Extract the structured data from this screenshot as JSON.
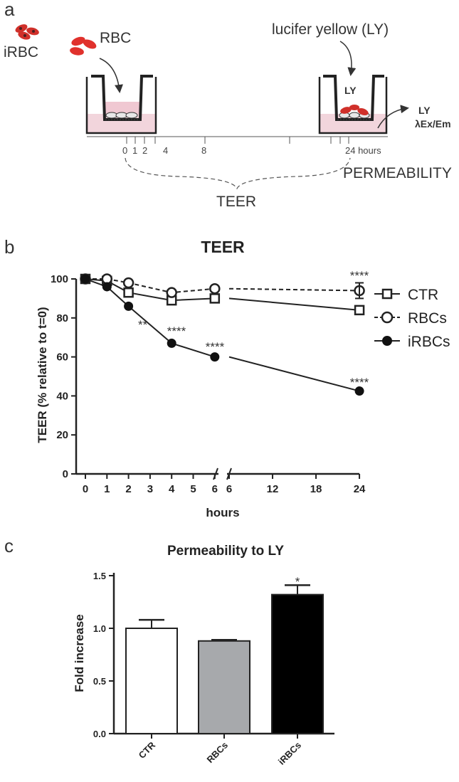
{
  "panels": {
    "a": "a",
    "b": "b",
    "c": "c"
  },
  "schematic": {
    "irbc_label": "iRBC",
    "rbc_label": "RBC",
    "ly_title": "lucifer yellow (LY)",
    "ly_in_well": "LY",
    "ly_out": "LY",
    "ly_ex_em": "λEx/Em",
    "timeline_ticks": [
      "0",
      "1",
      "2",
      "4",
      "8",
      "24 hours"
    ],
    "teer": "TEER",
    "permeability": "PERMEABILITY"
  },
  "chart_data": [
    {
      "type": "line",
      "title": "TEER",
      "xlabel": "hours",
      "ylabel": "TEER (% relative to t=0)",
      "ylim": [
        0,
        100
      ],
      "yticks": [
        "0",
        "20",
        "40",
        "60",
        "80",
        "100"
      ],
      "xticks": [
        "0",
        "1",
        "2",
        "3",
        "4",
        "5",
        "6",
        "6",
        "12",
        "18",
        "24"
      ],
      "x_axis_break": "between 6 and 6 (segment 0-6 h, then 6-24 h)",
      "series": [
        {
          "name": "CTR",
          "marker": "open-square",
          "line": "solid",
          "x": [
            0,
            1,
            2,
            4,
            6,
            24
          ],
          "values": [
            100,
            99,
            93,
            89,
            90,
            84
          ]
        },
        {
          "name": "RBCs",
          "marker": "open-circle",
          "line": "dashed",
          "x": [
            0,
            1,
            2,
            4,
            6,
            24
          ],
          "values": [
            100,
            100,
            98,
            93,
            95,
            94
          ]
        },
        {
          "name": "iRBCs",
          "marker": "filled-circle",
          "line": "solid",
          "x": [
            0,
            1,
            2,
            4,
            6,
            24
          ],
          "values": [
            100,
            96,
            86,
            67,
            60,
            42.5
          ]
        }
      ],
      "annotations": [
        {
          "x": 2,
          "text": "**"
        },
        {
          "x": 4,
          "text": "****"
        },
        {
          "x": 6,
          "text": "****"
        },
        {
          "x": 24,
          "series": "RBCs",
          "text": "****"
        },
        {
          "x": 24,
          "series": "iRBCs",
          "text": "****"
        }
      ],
      "legend_position": "right"
    },
    {
      "type": "bar",
      "title": "Permeability to LY",
      "xlabel": "",
      "ylabel": "Fold increase",
      "ylim": [
        0,
        1.5
      ],
      "yticks": [
        "0.0",
        "0.5",
        "1.0",
        "1.5"
      ],
      "categories": [
        "CTR",
        "RBCs",
        "iRBCs"
      ],
      "values": [
        1.0,
        0.88,
        1.32
      ],
      "errors": [
        0.08,
        0.01,
        0.09
      ],
      "colors": [
        "#ffffff",
        "#a7a9ac",
        "#000000"
      ],
      "annotations": [
        {
          "category": "iRBCs",
          "text": "*"
        }
      ]
    }
  ]
}
